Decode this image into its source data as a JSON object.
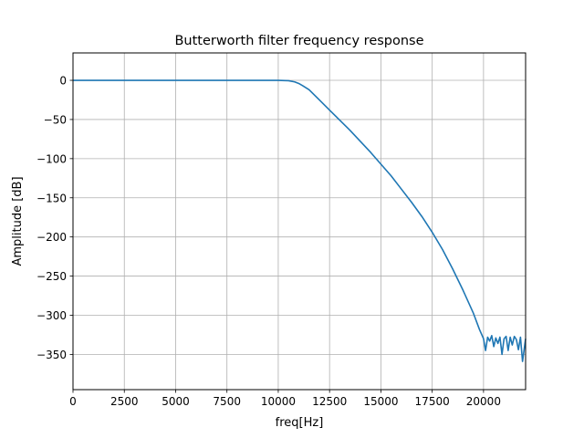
{
  "chart_data": {
    "type": "line",
    "title": "Butterworth filter frequency response",
    "xlabel": "freq[Hz]",
    "ylabel": "Amplitude [dB]",
    "xlim": [
      0,
      22050
    ],
    "ylim": [
      -395,
      35
    ],
    "grid": true,
    "x_ticks": [
      0,
      2500,
      5000,
      7500,
      10000,
      12500,
      15000,
      17500,
      20000
    ],
    "x_tick_labels": [
      "0",
      "2500",
      "5000",
      "7500",
      "10000",
      "12500",
      "15000",
      "17500",
      "20000"
    ],
    "y_ticks": [
      0,
      -50,
      -100,
      -150,
      -200,
      -250,
      -300,
      -350
    ],
    "y_tick_labels": [
      "0",
      "−50",
      "−100",
      "−150",
      "−200",
      "−250",
      "−300",
      "−350"
    ],
    "line_color": "#1f77b4",
    "series": [
      {
        "x": [
          0,
          2500,
          5000,
          7500,
          10000,
          10500,
          10800,
          11000,
          11200,
          11500,
          12000,
          12500,
          13000,
          13500,
          14000,
          14500,
          15000,
          15500,
          16000,
          16500,
          17000,
          17500,
          18000,
          18500,
          19000,
          19500,
          19800,
          20000,
          20100,
          20200,
          20300,
          20400,
          20500,
          20600,
          20700,
          20800,
          20900,
          21000,
          21100,
          21200,
          21300,
          21400,
          21500,
          21600,
          21700,
          21800,
          21900,
          22050
        ],
        "y": [
          0,
          0,
          0,
          0,
          0,
          -0.5,
          -2,
          -4,
          -7,
          -12,
          -25,
          -38,
          -51,
          -64,
          -78,
          -92,
          -107,
          -122,
          -139,
          -156,
          -174,
          -194,
          -216,
          -241,
          -268,
          -297,
          -318,
          -330,
          -345,
          -328,
          -333,
          -326,
          -340,
          -329,
          -336,
          -328,
          -350,
          -330,
          -327,
          -345,
          -328,
          -338,
          -327,
          -331,
          -344,
          -328,
          -359,
          -330
        ]
      }
    ]
  }
}
